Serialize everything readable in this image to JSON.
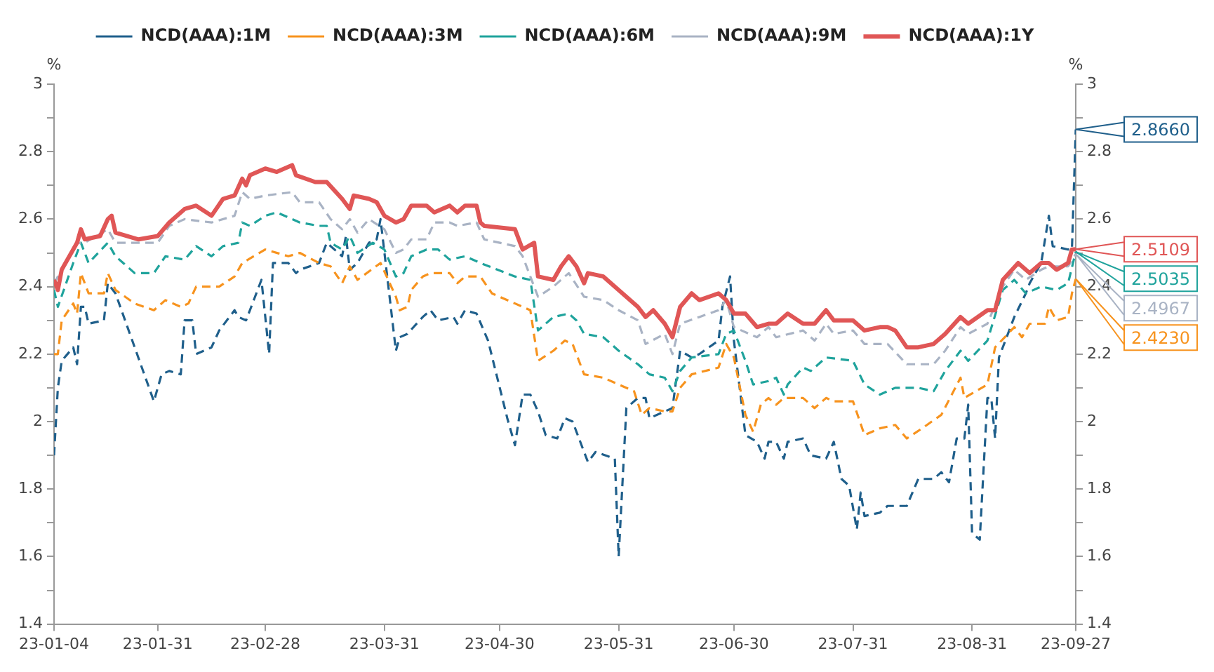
{
  "chart_data": {
    "type": "line",
    "legend": "top",
    "grid": false,
    "ylabel": "%",
    "y2label": "%",
    "xlim": [
      "--01-04",
      "--09-27"
    ],
    "xticks": [
      {
        "value": "--01-04",
        "label": "23-01-04"
      },
      {
        "value": "--01-31",
        "label": "23-01-31"
      },
      {
        "value": "--02-28",
        "label": "23-02-28"
      },
      {
        "value": "--03-31",
        "label": "23-03-31"
      },
      {
        "value": "--04-30",
        "label": "23-04-30"
      },
      {
        "value": "--05-31",
        "label": "23-05-31"
      },
      {
        "value": "--06-30",
        "label": "23-06-30"
      },
      {
        "value": "--07-31",
        "label": "23-07-31"
      },
      {
        "value": "--08-31",
        "label": "23-08-31"
      },
      {
        "value": "--09-27",
        "label": "23-09-27"
      }
    ],
    "ylim": [
      1.4,
      3
    ],
    "yticks": [
      1.4,
      {
        "value": 1.5,
        "label": null
      },
      1.6,
      {
        "value": 1.7,
        "label": null
      },
      1.8,
      {
        "value": 1.9,
        "label": null
      },
      2,
      {
        "value": 2.1,
        "label": null
      },
      2.2,
      {
        "value": 2.3,
        "label": null
      },
      2.4,
      {
        "value": 2.5,
        "label": null
      },
      2.6,
      {
        "value": 2.7,
        "label": null
      },
      2.8,
      {
        "value": 2.9,
        "label": null
      },
      3
    ],
    "y2lim": [
      1.4,
      3
    ],
    "y2ticks": [
      1.4,
      {
        "value": 1.5,
        "label": null
      },
      1.6,
      {
        "value": 1.7,
        "label": null
      },
      1.8,
      {
        "value": 1.9,
        "label": null
      },
      2,
      {
        "value": 2.1,
        "label": null
      },
      2.2,
      {
        "value": 2.3,
        "label": null
      },
      2.4,
      {
        "value": 2.5,
        "label": null
      },
      2.6,
      {
        "value": 2.7,
        "label": null
      },
      2.8,
      {
        "value": 2.9,
        "label": null
      },
      3
    ],
    "series": [
      {
        "name": "NCD(AAA):1M",
        "color": "#1f5f8b",
        "line_style": "dashed",
        "x": [
          "--01-04",
          "--01-05",
          "--01-06",
          "--01-09",
          "--01-10",
          "--01-11",
          "--01-12",
          "--01-13",
          "--01-17",
          "--01-18",
          "--01-20",
          "--01-25",
          "--01-30",
          "--02-01",
          "--02-03",
          "--02-06",
          "--02-07",
          "--02-09",
          "--02-10",
          "--02-14",
          "--02-16",
          "--02-20",
          "--02-21",
          "--02-23",
          "--02-27",
          "--02-28",
          "--03-01",
          "--03-02",
          "--03-06",
          "--03-08",
          "--03-09",
          "--03-14",
          "--03-16",
          "--03-20",
          "--03-21",
          "--03-22",
          "--03-24",
          "--03-27",
          "--03-29",
          "--03-30",
          "--04-03",
          "--04-04",
          "--04-06",
          "--04-10",
          "--04-12",
          "--04-14",
          "--04-18",
          "--04-19",
          "--04-21",
          "--04-24",
          "--04-27",
          "--05-02",
          "--05-04",
          "--05-06",
          "--05-08",
          "--05-10",
          "--05-12",
          "--05-15",
          "--05-17",
          "--05-19",
          "--05-23",
          "--05-25",
          "--05-30",
          "--05-31",
          "--06-02",
          "--06-05",
          "--06-07",
          "--06-08",
          "--06-12",
          "--06-14",
          "--06-16",
          "--06-19",
          "--06-21",
          "--06-26",
          "--06-27",
          "--06-29",
          "--06-30",
          "--07-03",
          "--07-06",
          "--07-08",
          "--07-09",
          "--07-11",
          "--07-13",
          "--07-14",
          "--07-18",
          "--07-20",
          "--07-24",
          "--07-26",
          "--07-28",
          "--07-30",
          "--08-01",
          "--08-02",
          "--08-03",
          "--08-07",
          "--08-09",
          "--08-14",
          "--08-17",
          "--08-21",
          "--08-23",
          "--08-25",
          "--08-27",
          "--08-29",
          "--08-30",
          "--08-31",
          "--09-02",
          "--09-04",
          "--09-05",
          "--09-06",
          "--09-07",
          "--09-11",
          "--09-14",
          "--09-15",
          "--09-18",
          "--09-20",
          "--09-21",
          "--09-25",
          "--09-26",
          "--09-27"
        ],
        "values": [
          1.9,
          2.1,
          2.18,
          2.22,
          2.17,
          2.34,
          2.34,
          2.29,
          2.3,
          2.41,
          2.38,
          2.22,
          2.06,
          2.14,
          2.15,
          2.14,
          2.3,
          2.3,
          2.2,
          2.22,
          2.27,
          2.33,
          2.31,
          2.3,
          2.42,
          2.31,
          2.2,
          2.47,
          2.47,
          2.44,
          2.45,
          2.47,
          2.53,
          2.49,
          2.55,
          2.45,
          2.47,
          2.53,
          2.54,
          2.6,
          2.21,
          2.25,
          2.26,
          2.31,
          2.33,
          2.3,
          2.31,
          2.29,
          2.33,
          2.32,
          2.24,
          2.01,
          1.93,
          2.08,
          2.08,
          2.03,
          1.96,
          1.95,
          2.01,
          2.0,
          1.88,
          1.91,
          1.89,
          1.6,
          2.04,
          2.07,
          2.07,
          2.01,
          2.03,
          2.04,
          2.21,
          2.19,
          2.2,
          2.24,
          2.34,
          2.43,
          2.24,
          1.96,
          1.94,
          1.89,
          1.94,
          1.94,
          1.89,
          1.94,
          1.95,
          1.9,
          1.89,
          1.94,
          1.83,
          1.81,
          1.68,
          1.79,
          1.72,
          1.73,
          1.75,
          1.75,
          1.83,
          1.83,
          1.85,
          1.82,
          1.95,
          1.95,
          2.05,
          1.67,
          1.65,
          2.07,
          2.07,
          1.95,
          2.19,
          2.31,
          2.38,
          2.41,
          2.47,
          2.61,
          2.52,
          2.51,
          2.51,
          2.866
        ],
        "value_labels": [
          null,
          null,
          null,
          null,
          null,
          null,
          null,
          null,
          null,
          null,
          null,
          null,
          null,
          null,
          null,
          null,
          null,
          null,
          null,
          null,
          null,
          null,
          null,
          null,
          null,
          null,
          null,
          null,
          null,
          null,
          null,
          null,
          null,
          null,
          null,
          null,
          null,
          null,
          null,
          null,
          null,
          null,
          null,
          null,
          null,
          null,
          null,
          null,
          null,
          null,
          null,
          null,
          null,
          null,
          null,
          null,
          null,
          null,
          null,
          null,
          null,
          null,
          null,
          null,
          null,
          null,
          null,
          null,
          null,
          null,
          null,
          null,
          null,
          null,
          null,
          null,
          null,
          null,
          null,
          null,
          null,
          null,
          null,
          null,
          null,
          null,
          null,
          null,
          null,
          null,
          null,
          null,
          null,
          null,
          null,
          null,
          null,
          null,
          null,
          null,
          null,
          null,
          null,
          null,
          null,
          null,
          null,
          null,
          null,
          null,
          null,
          null,
          null,
          null,
          null,
          null,
          null,
          "2.8660"
        ]
      },
      {
        "name": "NCD(AAA):3M",
        "color": "#f7931e",
        "line_style": "dashed",
        "x": [
          "--01-04",
          "--01-05",
          "--01-06",
          "--01-09",
          "--01-10",
          "--01-11",
          "--01-13",
          "--01-17",
          "--01-18",
          "--01-20",
          "--01-25",
          "--01-30",
          "--02-02",
          "--02-06",
          "--02-08",
          "--02-10",
          "--02-16",
          "--02-20",
          "--02-22",
          "--02-28",
          "--03-06",
          "--03-09",
          "--03-14",
          "--03-17",
          "--03-20",
          "--03-22",
          "--03-24",
          "--03-30",
          "--04-03",
          "--04-04",
          "--04-06",
          "--04-07",
          "--04-10",
          "--04-12",
          "--04-17",
          "--04-19",
          "--04-21",
          "--04-25",
          "--04-28",
          "--05-04",
          "--05-08",
          "--05-10",
          "--05-14",
          "--05-17",
          "--05-19",
          "--05-22",
          "--05-27",
          "--05-31",
          "--06-04",
          "--06-06",
          "--06-08",
          "--06-12",
          "--06-14",
          "--06-16",
          "--06-19",
          "--06-26",
          "--06-28",
          "--06-30",
          "--07-03",
          "--07-05",
          "--07-07",
          "--07-09",
          "--07-11",
          "--07-13",
          "--07-18",
          "--07-21",
          "--07-24",
          "--07-26",
          "--07-31",
          "--08-03",
          "--08-07",
          "--08-11",
          "--08-14",
          "--08-18",
          "--08-23",
          "--08-28",
          "--08-29",
          "--09-04",
          "--09-06",
          "--09-11",
          "--09-13",
          "--09-15",
          "--09-19",
          "--09-20",
          "--09-22",
          "--09-25",
          "--09-26",
          "--09-27"
        ],
        "values": [
          2.2,
          2.2,
          2.3,
          2.35,
          2.32,
          2.44,
          2.38,
          2.38,
          2.44,
          2.39,
          2.35,
          2.33,
          2.36,
          2.34,
          2.35,
          2.4,
          2.4,
          2.43,
          2.47,
          2.51,
          2.49,
          2.5,
          2.47,
          2.46,
          2.41,
          2.46,
          2.42,
          2.47,
          2.37,
          2.33,
          2.34,
          2.39,
          2.43,
          2.44,
          2.44,
          2.41,
          2.43,
          2.43,
          2.38,
          2.35,
          2.33,
          2.18,
          2.21,
          2.24,
          2.23,
          2.14,
          2.13,
          2.11,
          2.09,
          2.02,
          2.04,
          2.03,
          2.03,
          2.1,
          2.14,
          2.16,
          2.23,
          2.19,
          2.02,
          1.97,
          2.05,
          2.07,
          2.05,
          2.07,
          2.07,
          2.04,
          2.07,
          2.06,
          2.06,
          1.96,
          1.98,
          1.99,
          1.95,
          1.98,
          2.02,
          2.13,
          2.07,
          2.11,
          2.22,
          2.28,
          2.25,
          2.29,
          2.29,
          2.34,
          2.3,
          2.31,
          2.38,
          2.423
        ],
        "value_labels": [
          null,
          null,
          null,
          null,
          null,
          null,
          null,
          null,
          null,
          null,
          null,
          null,
          null,
          null,
          null,
          null,
          null,
          null,
          null,
          null,
          null,
          null,
          null,
          null,
          null,
          null,
          null,
          null,
          null,
          null,
          null,
          null,
          null,
          null,
          null,
          null,
          null,
          null,
          null,
          null,
          null,
          null,
          null,
          null,
          null,
          null,
          null,
          null,
          null,
          null,
          null,
          null,
          null,
          null,
          null,
          null,
          null,
          null,
          null,
          null,
          null,
          null,
          null,
          null,
          null,
          null,
          null,
          null,
          null,
          null,
          null,
          null,
          null,
          null,
          null,
          null,
          null,
          null,
          null,
          null,
          null,
          null,
          null,
          null,
          null,
          null,
          null,
          "2.4230"
        ]
      },
      {
        "name": "NCD(AAA):6M",
        "color": "#1fa39c",
        "line_style": "dashed",
        "x": [
          "--01-04",
          "--01-05",
          "--01-09",
          "--01-11",
          "--01-13",
          "--01-18",
          "--01-20",
          "--01-25",
          "--01-30",
          "--02-02",
          "--02-07",
          "--02-10",
          "--02-14",
          "--02-17",
          "--02-21",
          "--02-22",
          "--02-24",
          "--02-28",
          "--03-03",
          "--03-09",
          "--03-14",
          "--03-16",
          "--03-17",
          "--03-20",
          "--03-22",
          "--03-24",
          "--03-28",
          "--03-31",
          "--04-03",
          "--04-05",
          "--04-07",
          "--04-11",
          "--04-14",
          "--04-17",
          "--04-21",
          "--04-25",
          "--05-04",
          "--05-08",
          "--05-10",
          "--05-14",
          "--05-18",
          "--05-20",
          "--05-22",
          "--05-27",
          "--05-31",
          "--06-05",
          "--06-08",
          "--06-12",
          "--06-14",
          "--06-16",
          "--06-19",
          "--06-26",
          "--06-28",
          "--06-30",
          "--07-03",
          "--07-05",
          "--07-09",
          "--07-11",
          "--07-13",
          "--07-14",
          "--07-18",
          "--07-20",
          "--07-24",
          "--07-31",
          "--08-03",
          "--08-07",
          "--08-11",
          "--08-17",
          "--08-21",
          "--08-24",
          "--08-28",
          "--08-30",
          "--09-04",
          "--09-08",
          "--09-11",
          "--09-14",
          "--09-18",
          "--09-22",
          "--09-25",
          "--09-27"
        ],
        "values": [
          2.39,
          2.34,
          2.47,
          2.53,
          2.47,
          2.53,
          2.49,
          2.44,
          2.44,
          2.49,
          2.48,
          2.52,
          2.49,
          2.52,
          2.53,
          2.59,
          2.58,
          2.61,
          2.62,
          2.59,
          2.58,
          2.58,
          2.53,
          2.51,
          2.55,
          2.5,
          2.53,
          2.51,
          2.43,
          2.44,
          2.49,
          2.51,
          2.51,
          2.48,
          2.49,
          2.47,
          2.43,
          2.42,
          2.27,
          2.31,
          2.32,
          2.3,
          2.26,
          2.25,
          2.21,
          2.17,
          2.14,
          2.13,
          2.09,
          2.15,
          2.19,
          2.2,
          2.26,
          2.27,
          2.18,
          2.11,
          2.12,
          2.13,
          2.08,
          2.11,
          2.16,
          2.15,
          2.19,
          2.18,
          2.11,
          2.08,
          2.1,
          2.1,
          2.09,
          2.15,
          2.21,
          2.18,
          2.24,
          2.39,
          2.42,
          2.38,
          2.4,
          2.39,
          2.41,
          2.5035
        ],
        "value_labels": [
          null,
          null,
          null,
          null,
          null,
          null,
          null,
          null,
          null,
          null,
          null,
          null,
          null,
          null,
          null,
          null,
          null,
          null,
          null,
          null,
          null,
          null,
          null,
          null,
          null,
          null,
          null,
          null,
          null,
          null,
          null,
          null,
          null,
          null,
          null,
          null,
          null,
          null,
          null,
          null,
          null,
          null,
          null,
          null,
          null,
          null,
          null,
          null,
          null,
          null,
          null,
          null,
          null,
          null,
          null,
          null,
          null,
          null,
          null,
          null,
          null,
          null,
          null,
          null,
          null,
          null,
          null,
          null,
          null,
          null,
          null,
          null,
          null,
          null,
          null,
          null,
          null,
          null,
          null,
          "2.5035"
        ]
      },
      {
        "name": "NCD(AAA):9M",
        "color": "#a9b3c4",
        "line_style": "dashed",
        "x": [
          "--01-04",
          "--01-10",
          "--01-12",
          "--01-18",
          "--01-20",
          "--01-31",
          "--02-03",
          "--02-07",
          "--02-14",
          "--02-20",
          "--02-22",
          "--02-24",
          "--02-28",
          "--03-07",
          "--03-09",
          "--03-14",
          "--03-17",
          "--03-20",
          "--03-22",
          "--03-24",
          "--03-27",
          "--03-31",
          "--04-03",
          "--04-05",
          "--04-07",
          "--04-11",
          "--04-13",
          "--04-17",
          "--04-19",
          "--04-24",
          "--04-26",
          "--05-04",
          "--05-06",
          "--05-10",
          "--05-14",
          "--05-18",
          "--05-22",
          "--05-27",
          "--05-31",
          "--06-05",
          "--06-07",
          "--06-12",
          "--06-14",
          "--06-16",
          "--06-21",
          "--06-26",
          "--06-28",
          "--06-30",
          "--07-06",
          "--07-09",
          "--07-11",
          "--07-18",
          "--07-21",
          "--07-24",
          "--07-26",
          "--07-31",
          "--08-03",
          "--08-09",
          "--08-14",
          "--08-21",
          "--08-24",
          "--08-28",
          "--08-30",
          "--09-04",
          "--09-08",
          "--09-11",
          "--09-14",
          "--09-18",
          "--09-20",
          "--09-25",
          "--09-27"
        ],
        "values": [
          2.41,
          2.53,
          2.53,
          2.57,
          2.53,
          2.53,
          2.58,
          2.6,
          2.59,
          2.61,
          2.68,
          2.66,
          2.67,
          2.68,
          2.65,
          2.65,
          2.6,
          2.57,
          2.6,
          2.56,
          2.6,
          2.57,
          2.5,
          2.51,
          2.54,
          2.54,
          2.59,
          2.59,
          2.58,
          2.59,
          2.54,
          2.52,
          2.49,
          2.37,
          2.4,
          2.44,
          2.37,
          2.36,
          2.33,
          2.3,
          2.23,
          2.26,
          2.2,
          2.29,
          2.31,
          2.33,
          2.36,
          2.28,
          2.25,
          2.28,
          2.25,
          2.27,
          2.24,
          2.29,
          2.26,
          2.27,
          2.23,
          2.23,
          2.17,
          2.17,
          2.21,
          2.28,
          2.26,
          2.29,
          2.4,
          2.45,
          2.42,
          2.45,
          2.46,
          2.46,
          2.4967
        ],
        "value_labels": [
          null,
          null,
          null,
          null,
          null,
          null,
          null,
          null,
          null,
          null,
          null,
          null,
          null,
          null,
          null,
          null,
          null,
          null,
          null,
          null,
          null,
          null,
          null,
          null,
          null,
          null,
          null,
          null,
          null,
          null,
          null,
          null,
          null,
          null,
          null,
          null,
          null,
          null,
          null,
          null,
          null,
          null,
          null,
          null,
          null,
          null,
          null,
          null,
          null,
          null,
          null,
          null,
          null,
          null,
          null,
          null,
          null,
          null,
          null,
          null,
          null,
          null,
          null,
          null,
          null,
          null,
          null,
          null,
          null,
          null,
          "2.4967"
        ]
      },
      {
        "name": "NCD(AAA):1Y",
        "color": "#e05656",
        "line_style": "solid",
        "x": [
          "--01-04",
          "--01-05",
          "--01-06",
          "--01-10",
          "--01-11",
          "--01-12",
          "--01-16",
          "--01-18",
          "--01-19",
          "--01-20",
          "--01-26",
          "--01-31",
          "--02-03",
          "--02-07",
          "--02-10",
          "--02-14",
          "--02-17",
          "--02-20",
          "--02-22",
          "--02-23",
          "--02-24",
          "--02-28",
          "--03-03",
          "--03-07",
          "--03-08",
          "--03-13",
          "--03-16",
          "--03-20",
          "--03-22",
          "--03-23",
          "--03-27",
          "--03-29",
          "--03-31",
          "--04-03",
          "--04-05",
          "--04-07",
          "--04-11",
          "--04-13",
          "--04-17",
          "--04-19",
          "--04-21",
          "--04-24",
          "--04-25",
          "--04-26",
          "--05-04",
          "--05-06",
          "--05-09",
          "--05-10",
          "--05-14",
          "--05-16",
          "--05-18",
          "--05-20",
          "--05-22",
          "--05-23",
          "--05-27",
          "--05-31",
          "--06-05",
          "--06-07",
          "--06-09",
          "--06-12",
          "--06-14",
          "--06-16",
          "--06-19",
          "--06-21",
          "--06-26",
          "--06-28",
          "--06-30",
          "--07-03",
          "--07-06",
          "--07-09",
          "--07-11",
          "--07-14",
          "--07-18",
          "--07-21",
          "--07-24",
          "--07-26",
          "--07-31",
          "--08-03",
          "--08-07",
          "--08-09",
          "--08-11",
          "--08-14",
          "--08-17",
          "--08-21",
          "--08-24",
          "--08-28",
          "--08-30",
          "--09-04",
          "--09-06",
          "--09-08",
          "--09-12",
          "--09-14",
          "--09-15",
          "--09-18",
          "--09-20",
          "--09-22",
          "--09-25",
          "--09-26",
          "--09-27"
        ],
        "values": [
          2.42,
          2.39,
          2.45,
          2.53,
          2.57,
          2.54,
          2.55,
          2.6,
          2.61,
          2.56,
          2.54,
          2.55,
          2.59,
          2.63,
          2.64,
          2.61,
          2.66,
          2.67,
          2.72,
          2.7,
          2.73,
          2.75,
          2.74,
          2.76,
          2.73,
          2.71,
          2.71,
          2.66,
          2.63,
          2.67,
          2.66,
          2.65,
          2.61,
          2.59,
          2.6,
          2.64,
          2.64,
          2.62,
          2.64,
          2.62,
          2.64,
          2.64,
          2.59,
          2.58,
          2.57,
          2.51,
          2.53,
          2.43,
          2.42,
          2.46,
          2.49,
          2.46,
          2.41,
          2.44,
          2.43,
          2.39,
          2.34,
          2.31,
          2.33,
          2.29,
          2.25,
          2.34,
          2.38,
          2.36,
          2.38,
          2.36,
          2.32,
          2.32,
          2.28,
          2.29,
          2.29,
          2.32,
          2.29,
          2.29,
          2.33,
          2.3,
          2.3,
          2.27,
          2.28,
          2.28,
          2.27,
          2.22,
          2.22,
          2.23,
          2.26,
          2.31,
          2.29,
          2.33,
          2.33,
          2.42,
          2.47,
          2.45,
          2.44,
          2.47,
          2.47,
          2.45,
          2.47,
          2.51,
          2.5109
        ],
        "value_labels": [
          null,
          null,
          null,
          null,
          null,
          null,
          null,
          null,
          null,
          null,
          null,
          null,
          null,
          null,
          null,
          null,
          null,
          null,
          null,
          null,
          null,
          null,
          null,
          null,
          null,
          null,
          null,
          null,
          null,
          null,
          null,
          null,
          null,
          null,
          null,
          null,
          null,
          null,
          null,
          null,
          null,
          null,
          null,
          null,
          null,
          null,
          null,
          null,
          null,
          null,
          null,
          null,
          null,
          null,
          null,
          null,
          null,
          null,
          null,
          null,
          null,
          null,
          null,
          null,
          null,
          null,
          null,
          null,
          null,
          null,
          null,
          null,
          null,
          null,
          null,
          null,
          null,
          null,
          null,
          null,
          null,
          null,
          null,
          null,
          null,
          null,
          null,
          null,
          null,
          null,
          null,
          null,
          null,
          null,
          null,
          null,
          null,
          null,
          "2.5109"
        ]
      }
    ]
  }
}
